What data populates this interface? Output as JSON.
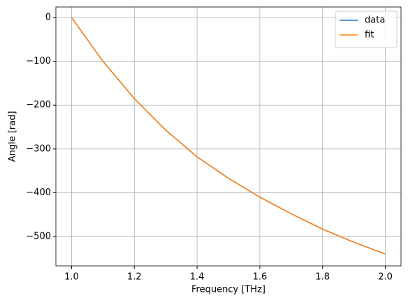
{
  "chart_data": {
    "type": "line",
    "xlabel": "Frequency [THz]",
    "ylabel": "Angle [rad]",
    "x": [
      1.0,
      1.1,
      1.2,
      1.3,
      1.4,
      1.5,
      1.6,
      1.7,
      1.8,
      1.9,
      2.0
    ],
    "series": [
      {
        "name": "data",
        "color": "#1f77b4",
        "values": [
          0,
          -100,
          -185,
          -257,
          -318,
          -367,
          -410,
          -448,
          -483,
          -513,
          -540
        ]
      },
      {
        "name": "fit",
        "color": "#ff7f0e",
        "values": [
          0,
          -100,
          -185,
          -257,
          -318,
          -367,
          -410,
          -448,
          -483,
          -513,
          -540
        ]
      }
    ],
    "xlim": [
      0.95,
      2.05
    ],
    "ylim": [
      -567,
      24
    ],
    "xticks": [
      {
        "value": 1.0,
        "label": "1.0"
      },
      1.2,
      1.4,
      1.6,
      1.8,
      {
        "value": 2.0,
        "label": "2.0"
      }
    ],
    "yticks": [
      0,
      {
        "value": -100,
        "label": "−100"
      },
      {
        "value": -200,
        "label": "−200"
      },
      {
        "value": -300,
        "label": "−300"
      },
      {
        "value": -400,
        "label": "−400"
      },
      {
        "value": -500,
        "label": "−500"
      }
    ],
    "grid": true,
    "legend": "upper right"
  }
}
